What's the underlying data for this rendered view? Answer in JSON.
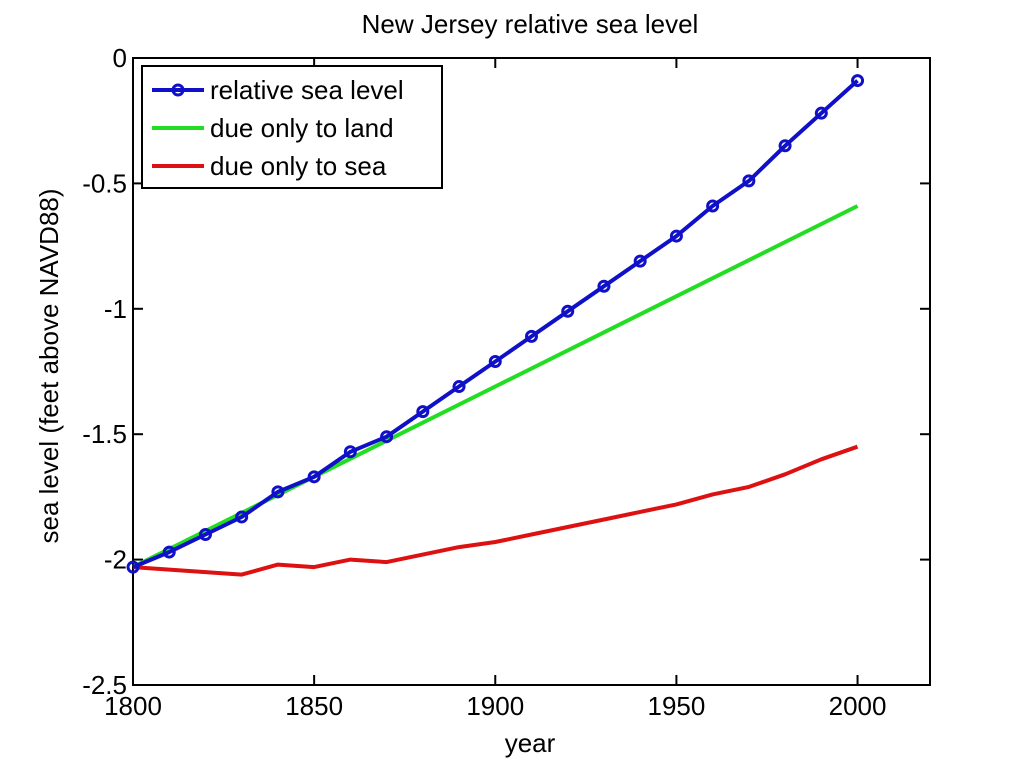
{
  "chart_data": {
    "type": "line",
    "title": "New Jersey relative sea level",
    "xlabel": "year",
    "ylabel": "sea level (feet above NAVD88)",
    "xlim": [
      1800,
      2020
    ],
    "ylim": [
      -2.5,
      0
    ],
    "xticks": [
      "1800",
      "1850",
      "1900",
      "1950",
      "2000"
    ],
    "xtick_values": [
      1800,
      1850,
      1900,
      1950,
      2000
    ],
    "yticks": [
      "0",
      "-0.5",
      "-1",
      "-1.5",
      "-2",
      "-2.5"
    ],
    "ytick_values": [
      0,
      -0.5,
      -1,
      -1.5,
      -2,
      -2.5
    ],
    "grid": false,
    "legend_position": "top-left",
    "series": [
      {
        "name": "relative sea level",
        "color": "#1010c8",
        "marker": "circle",
        "x": [
          1800,
          1810,
          1820,
          1830,
          1840,
          1850,
          1860,
          1870,
          1880,
          1890,
          1900,
          1910,
          1920,
          1930,
          1940,
          1950,
          1960,
          1970,
          1980,
          1990,
          2000
        ],
        "y": [
          -2.03,
          -1.97,
          -1.9,
          -1.83,
          -1.73,
          -1.67,
          -1.57,
          -1.51,
          -1.41,
          -1.31,
          -1.21,
          -1.11,
          -1.01,
          -0.91,
          -0.81,
          -0.71,
          -0.59,
          -0.49,
          -0.35,
          -0.22,
          -0.09
        ]
      },
      {
        "name": "due only to land",
        "color": "#22dd22",
        "marker": "none",
        "x": [
          1800,
          2000
        ],
        "y": [
          -2.03,
          -0.59
        ]
      },
      {
        "name": "due only to sea",
        "color": "#dd1111",
        "marker": "none",
        "x": [
          1800,
          1810,
          1820,
          1830,
          1840,
          1850,
          1860,
          1870,
          1880,
          1890,
          1900,
          1910,
          1920,
          1930,
          1940,
          1950,
          1960,
          1970,
          1980,
          1990,
          2000
        ],
        "y": [
          -2.03,
          -2.04,
          -2.05,
          -2.06,
          -2.02,
          -2.03,
          -2.0,
          -2.01,
          -1.98,
          -1.95,
          -1.93,
          -1.9,
          -1.87,
          -1.84,
          -1.81,
          -1.78,
          -1.74,
          -1.71,
          -1.66,
          -1.6,
          -1.55
        ]
      }
    ]
  }
}
